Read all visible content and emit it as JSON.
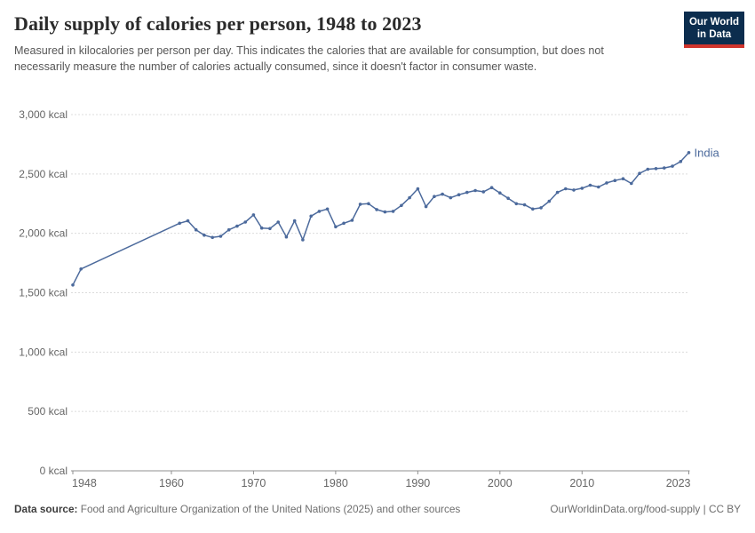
{
  "header": {
    "title": "Daily supply of calories per person, 1948 to 2023",
    "subtitle": "Measured in kilocalories per person per day. This indicates the calories that are available for consumption, but does not necessarily measure the number of calories actually consumed, since it doesn't factor in consumer waste.",
    "logo": {
      "line1": "Our World",
      "line2": "in Data"
    }
  },
  "chart_data": {
    "type": "line",
    "title": "Daily supply of calories per person, 1948 to 2023",
    "xlabel": "",
    "ylabel": "kcal",
    "xlim": [
      1948,
      2023
    ],
    "ylim": [
      0,
      3000
    ],
    "grid": "horizontal-dashed",
    "legend_position": "end-of-line-label",
    "xticks": [
      1948,
      1960,
      1970,
      1980,
      1990,
      2000,
      2010,
      2023
    ],
    "yticks": [
      {
        "value": 0,
        "label": "0 kcal"
      },
      {
        "value": 500,
        "label": "500 kcal"
      },
      {
        "value": 1000,
        "label": "1,000 kcal"
      },
      {
        "value": 1500,
        "label": "1,500 kcal"
      },
      {
        "value": 2000,
        "label": "2,000 kcal"
      },
      {
        "value": 2500,
        "label": "2,500 kcal"
      },
      {
        "value": 3000,
        "label": "3,000 kcal"
      }
    ],
    "series": [
      {
        "name": "India",
        "color": "#4C6A9C",
        "points": [
          [
            1948,
            1565
          ],
          [
            1949,
            1700
          ],
          [
            1961,
            2085
          ],
          [
            1962,
            2105
          ],
          [
            1963,
            2030
          ],
          [
            1964,
            1985
          ],
          [
            1965,
            1965
          ],
          [
            1966,
            1975
          ],
          [
            1967,
            2030
          ],
          [
            1968,
            2060
          ],
          [
            1969,
            2095
          ],
          [
            1970,
            2155
          ],
          [
            1971,
            2045
          ],
          [
            1972,
            2040
          ],
          [
            1973,
            2095
          ],
          [
            1974,
            1970
          ],
          [
            1975,
            2105
          ],
          [
            1976,
            1945
          ],
          [
            1977,
            2145
          ],
          [
            1978,
            2185
          ],
          [
            1979,
            2205
          ],
          [
            1980,
            2055
          ],
          [
            1981,
            2085
          ],
          [
            1982,
            2110
          ],
          [
            1983,
            2245
          ],
          [
            1984,
            2250
          ],
          [
            1985,
            2200
          ],
          [
            1986,
            2180
          ],
          [
            1987,
            2185
          ],
          [
            1988,
            2235
          ],
          [
            1989,
            2300
          ],
          [
            1990,
            2375
          ],
          [
            1991,
            2225
          ],
          [
            1992,
            2310
          ],
          [
            1993,
            2330
          ],
          [
            1994,
            2300
          ],
          [
            1995,
            2325
          ],
          [
            1996,
            2345
          ],
          [
            1997,
            2360
          ],
          [
            1998,
            2350
          ],
          [
            1999,
            2385
          ],
          [
            2000,
            2340
          ],
          [
            2001,
            2295
          ],
          [
            2002,
            2250
          ],
          [
            2003,
            2240
          ],
          [
            2004,
            2205
          ],
          [
            2005,
            2215
          ],
          [
            2006,
            2270
          ],
          [
            2007,
            2345
          ],
          [
            2008,
            2375
          ],
          [
            2009,
            2365
          ],
          [
            2010,
            2380
          ],
          [
            2011,
            2405
          ],
          [
            2012,
            2390
          ],
          [
            2013,
            2425
          ],
          [
            2014,
            2445
          ],
          [
            2015,
            2460
          ],
          [
            2016,
            2420
          ],
          [
            2017,
            2505
          ],
          [
            2018,
            2540
          ],
          [
            2019,
            2545
          ],
          [
            2020,
            2550
          ],
          [
            2021,
            2565
          ],
          [
            2022,
            2605
          ],
          [
            2023,
            2680
          ]
        ]
      }
    ]
  },
  "footer": {
    "datasource_label": "Data source:",
    "datasource_text": " Food and Agriculture Organization of the United Nations (2025) and other sources",
    "link_text": "OurWorldinData.org/food-supply | CC BY"
  },
  "colors": {
    "line": "#4C6A9C",
    "logo_bg": "#0c2d4e",
    "logo_red": "#d0342c",
    "grid": "#dcdcdc",
    "axis_line": "#8f8f8f",
    "axis_text": "#666666"
  }
}
